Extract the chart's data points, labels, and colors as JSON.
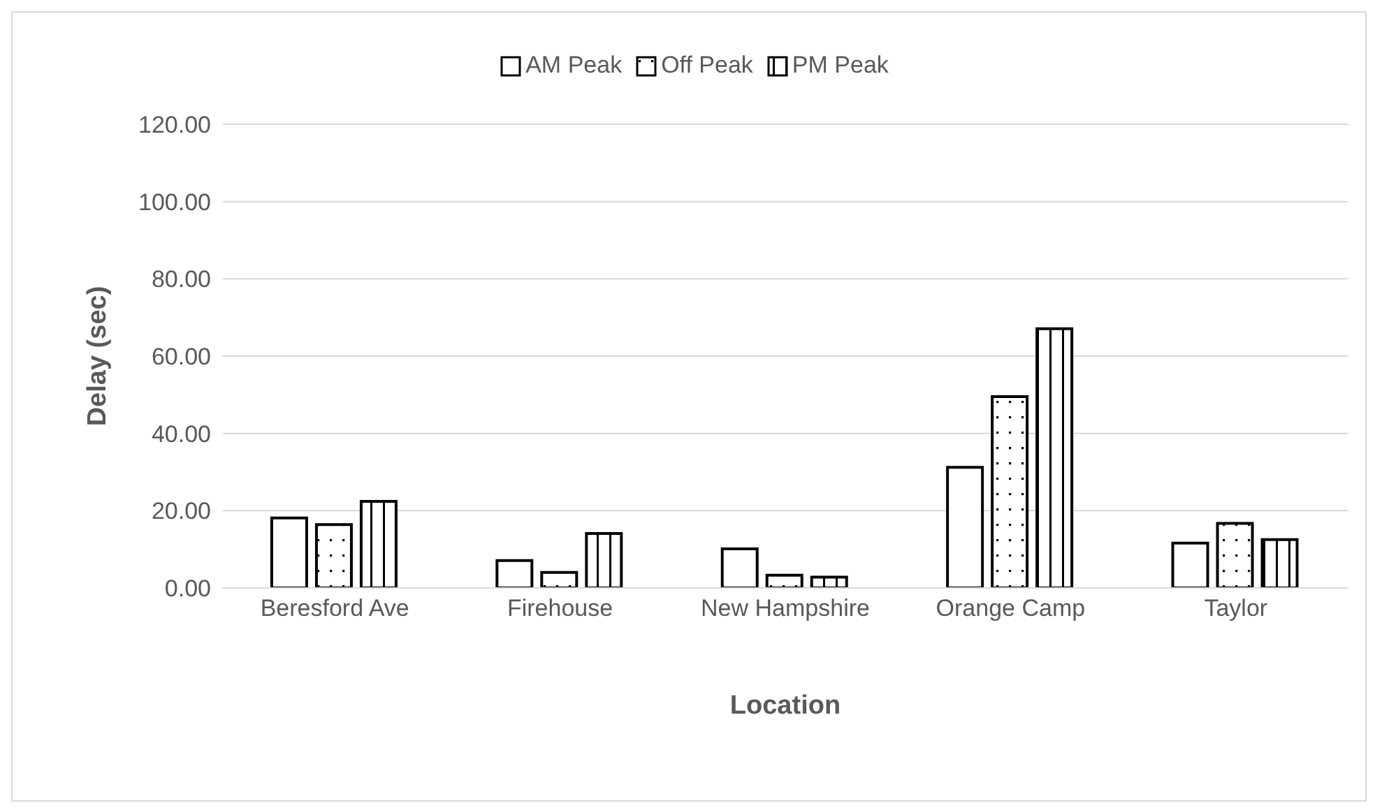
{
  "chart_data": {
    "type": "bar",
    "xlabel": "Location",
    "ylabel": "Delay (sec)",
    "categories": [
      "Beresford Ave",
      "Firehouse",
      "New Hampshire",
      "Orange Camp",
      "Taylor"
    ],
    "series": [
      {
        "name": "AM Peak",
        "color": "#000000",
        "values": [
          18.1,
          7.1,
          10.1,
          31.2,
          11.6
        ]
      },
      {
        "name": "Off Peak",
        "color": "#000000",
        "values": [
          16.4,
          4.0,
          3.3,
          49.5,
          16.7
        ]
      },
      {
        "name": "PM Peak",
        "color": "#000000",
        "values": [
          22.4,
          14.1,
          2.8,
          67.1,
          12.5
        ]
      }
    ],
    "ylim": [
      0,
      120
    ],
    "yticks": [
      {
        "value": 0,
        "label": "0.00"
      },
      {
        "value": 20,
        "label": "20.00"
      },
      {
        "value": 40,
        "label": "40.00"
      },
      {
        "value": 60,
        "label": "60.00"
      },
      {
        "value": 80,
        "label": "80.00"
      },
      {
        "value": 100,
        "label": "100.00"
      },
      {
        "value": 120,
        "label": "120.00"
      }
    ],
    "grid": "y",
    "legend": "top"
  }
}
